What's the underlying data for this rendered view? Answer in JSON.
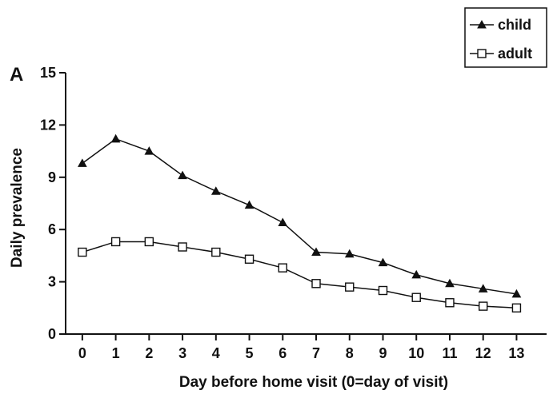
{
  "colors": {
    "ink": "#111111",
    "background": "#ffffff"
  },
  "chart_data": {
    "type": "line",
    "panel_label": "A",
    "xlabel": "Day before home visit (0=day of visit)",
    "ylabel": "Daily prevalence",
    "x": [
      0,
      1,
      2,
      3,
      4,
      5,
      6,
      7,
      8,
      9,
      10,
      11,
      12,
      13
    ],
    "xlim": [
      -0.5,
      13.9
    ],
    "ylim": [
      0,
      15
    ],
    "yticks": [
      0,
      3,
      6,
      9,
      12,
      15
    ],
    "grid": false,
    "legend_position": "top-right",
    "series": [
      {
        "name": "child",
        "marker": "filled-triangle",
        "values": [
          9.8,
          11.2,
          10.5,
          9.1,
          8.2,
          7.4,
          6.4,
          4.7,
          4.6,
          4.1,
          3.4,
          2.9,
          2.6,
          2.3
        ]
      },
      {
        "name": "adult",
        "marker": "open-square",
        "values": [
          4.7,
          5.3,
          5.3,
          5.0,
          4.7,
          4.3,
          3.8,
          2.9,
          2.7,
          2.5,
          2.1,
          1.8,
          1.6,
          1.5
        ]
      }
    ]
  }
}
